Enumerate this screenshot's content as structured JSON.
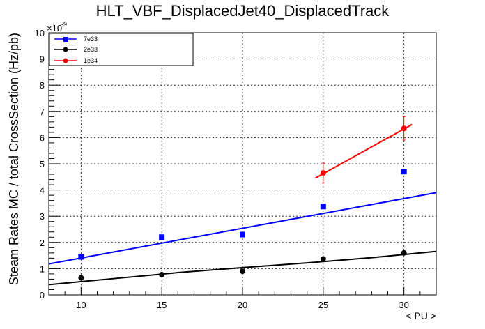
{
  "chart_data": {
    "type": "scatter",
    "title": "HLT_VBF_DisplacedJet40_DisplacedTrack",
    "xlabel": "< PU >",
    "ylabel": "Steam Rates MC / total CrossSection (Hz/pb)",
    "y_multiplier_label": "×10",
    "y_multiplier_exponent": "-9",
    "xlim": [
      8,
      32
    ],
    "ylim": [
      0,
      10
    ],
    "x_ticks": [
      10,
      15,
      20,
      25,
      30
    ],
    "y_ticks": [
      0,
      1,
      2,
      3,
      4,
      5,
      6,
      7,
      8,
      9,
      10
    ],
    "x_tick_labels": [
      "10",
      "15",
      "20",
      "25",
      "30"
    ],
    "y_tick_labels": [
      "0",
      "1",
      "2",
      "3",
      "4",
      "5",
      "6",
      "7",
      "8",
      "9",
      "10"
    ],
    "grid": true,
    "legend_position": "top-left",
    "series": [
      {
        "name": "7e33",
        "color": "#0000ff",
        "marker": "square",
        "x": [
          10,
          15,
          20,
          25,
          30
        ],
        "y": [
          1.45,
          2.2,
          2.3,
          3.37,
          4.7
        ],
        "err": [
          0.03,
          0.03,
          0.03,
          0.04,
          0.05
        ],
        "fit": {
          "kind": "linear",
          "x_range": [
            8,
            32
          ],
          "y_range": [
            1.18,
            3.9
          ]
        }
      },
      {
        "name": "2e33",
        "color": "#000000",
        "marker": "circle",
        "x": [
          10,
          15,
          20,
          25,
          30
        ],
        "y": [
          0.65,
          0.77,
          0.9,
          1.37,
          1.6
        ],
        "err": [
          0.02,
          0.02,
          0.02,
          0.03,
          0.03
        ],
        "fit": {
          "kind": "curve",
          "points": [
            [
              8,
              0.39
            ],
            [
              12,
              0.62
            ],
            [
              16,
              0.85
            ],
            [
              20,
              1.04
            ],
            [
              24,
              1.22
            ],
            [
              28,
              1.42
            ],
            [
              32,
              1.66
            ]
          ]
        }
      },
      {
        "name": "1e34",
        "color": "#ff0000",
        "marker": "circle",
        "x": [
          25,
          30
        ],
        "y": [
          4.65,
          6.35
        ],
        "err": [
          0.38,
          0.45
        ],
        "fit": {
          "kind": "linear",
          "x_range": [
            24.5,
            30.5
          ],
          "y_range": [
            4.45,
            6.5
          ]
        }
      }
    ]
  }
}
